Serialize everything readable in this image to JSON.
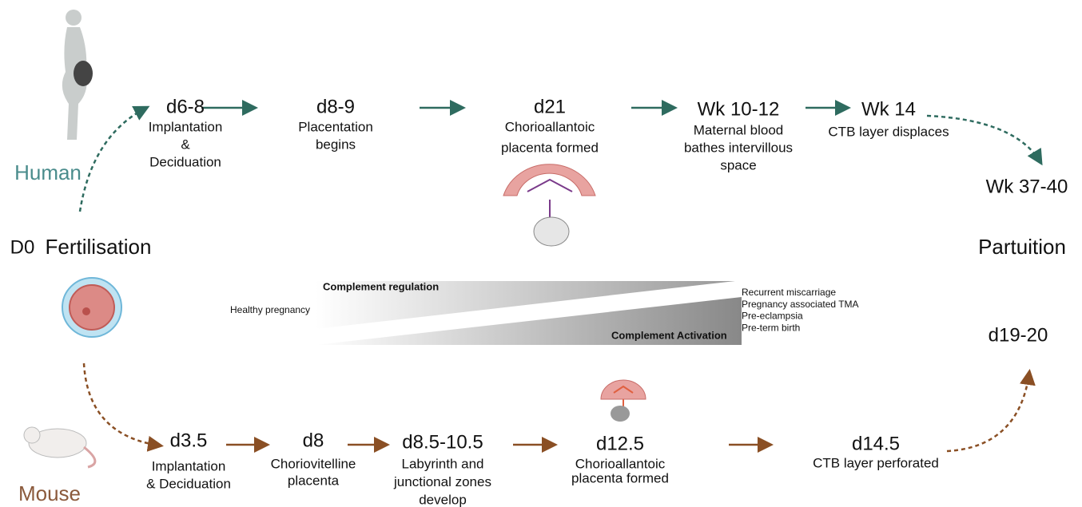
{
  "start": {
    "day": "D0",
    "label": "Fertilisation"
  },
  "end": {
    "label": "Partuition"
  },
  "human": {
    "label": "Human",
    "stages": [
      {
        "day": "d6-8",
        "description": [
          "Implantation",
          "&",
          "Deciduation"
        ]
      },
      {
        "day": "d8-9",
        "description": [
          "Placentation",
          "begins"
        ]
      },
      {
        "day": "d21",
        "description": [
          "Chorioallantoic",
          "placenta  formed"
        ]
      },
      {
        "day": "Wk 10-12",
        "description": [
          "Maternal blood",
          "bathes intervillous",
          "space"
        ]
      },
      {
        "day": "Wk 14",
        "description": [
          "CTB layer displaces"
        ]
      },
      {
        "day": "Wk 37-40",
        "description": []
      }
    ]
  },
  "mouse": {
    "label": "Mouse",
    "stages": [
      {
        "day": "d3.5",
        "description": [
          "Implantation",
          "& Deciduation"
        ]
      },
      {
        "day": "d8",
        "description": [
          "Choriovitelline",
          "placenta"
        ]
      },
      {
        "day": "d8.5-10.5",
        "description": [
          "Labyrinth and",
          "junctional zones",
          "develop"
        ]
      },
      {
        "day": "d12.5",
        "description": [
          "Chorioallantoic",
          "placenta formed"
        ]
      },
      {
        "day": "d14.5",
        "description": [
          "CTB layer perforated"
        ]
      },
      {
        "day": "d19-20",
        "description": []
      }
    ]
  },
  "complement": {
    "healthy": "Healthy pregnancy",
    "regulation": "Complement regulation",
    "activation": "Complement Activation",
    "outcomes": [
      "Recurrent miscarriage",
      "Pregnancy associated TMA",
      "Pre-eclampsia",
      "Pre-term birth"
    ]
  }
}
